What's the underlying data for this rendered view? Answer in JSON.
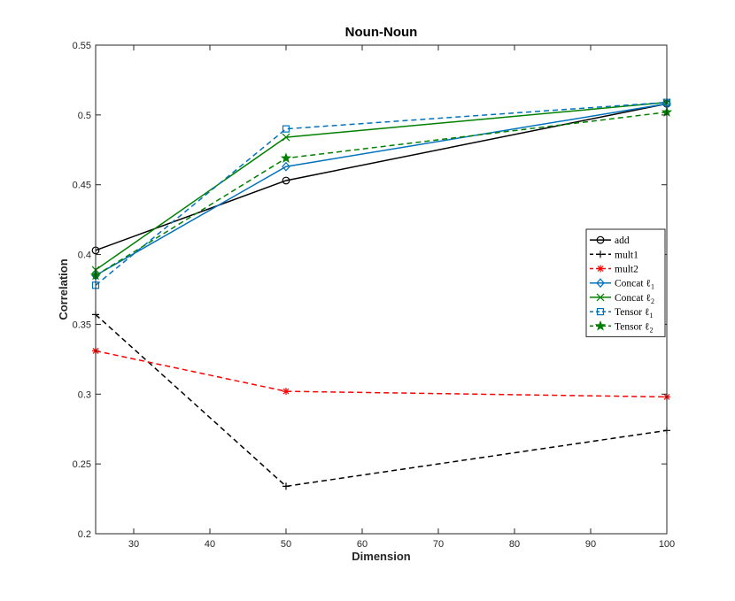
{
  "chart_data": {
    "type": "line",
    "title": "Noun-Noun",
    "xlabel": "Dimension",
    "ylabel": "Correlation",
    "xlim": [
      25,
      100
    ],
    "ylim": [
      0.2,
      0.55
    ],
    "x_ticks": [
      30,
      40,
      50,
      60,
      70,
      80,
      90,
      100
    ],
    "y_ticks": [
      0.2,
      0.25,
      0.3,
      0.35,
      0.4,
      0.45,
      0.5,
      0.55
    ],
    "x_tick_labels": [
      "30",
      "40",
      "50",
      "60",
      "70",
      "80",
      "90",
      "100"
    ],
    "y_tick_labels": [
      "0.2",
      "0.25",
      "0.3",
      "0.35",
      "0.4",
      "0.45",
      "0.5",
      "0.55"
    ],
    "grid": false,
    "legend_position": "right",
    "x": [
      25,
      50,
      100
    ],
    "series": [
      {
        "name": "add",
        "label_main": "add",
        "label_sub": "",
        "values": [
          0.403,
          0.453,
          0.508
        ],
        "color": "#000000",
        "dash": "solid",
        "marker": "circle"
      },
      {
        "name": "mult1",
        "label_main": "mult1",
        "label_sub": "",
        "values": [
          0.357,
          0.234,
          0.274
        ],
        "color": "#000000",
        "dash": "dashed",
        "marker": "plus"
      },
      {
        "name": "mult2",
        "label_main": "mult2",
        "label_sub": "",
        "values": [
          0.331,
          0.302,
          0.298
        ],
        "color": "#ff0000",
        "dash": "dashed",
        "marker": "asterisk"
      },
      {
        "name": "Concat ℓ1",
        "label_main": "Concat ℓ",
        "label_sub": "1",
        "values": [
          0.385,
          0.463,
          0.508
        ],
        "color": "#0072bd",
        "dash": "solid",
        "marker": "diamond"
      },
      {
        "name": "Concat ℓ2",
        "label_main": "Concat ℓ",
        "label_sub": "2",
        "values": [
          0.389,
          0.484,
          0.509
        ],
        "color": "#008000",
        "dash": "solid",
        "marker": "x"
      },
      {
        "name": "Tensor ℓ1",
        "label_main": "Tensor ℓ",
        "label_sub": "1",
        "values": [
          0.378,
          0.49,
          0.509
        ],
        "color": "#0072bd",
        "dash": "dashed",
        "marker": "square"
      },
      {
        "name": "Tensor ℓ2",
        "label_main": "Tensor ℓ",
        "label_sub": "2",
        "values": [
          0.385,
          0.469,
          0.502
        ],
        "color": "#008000",
        "dash": "dashed",
        "marker": "star"
      }
    ]
  }
}
